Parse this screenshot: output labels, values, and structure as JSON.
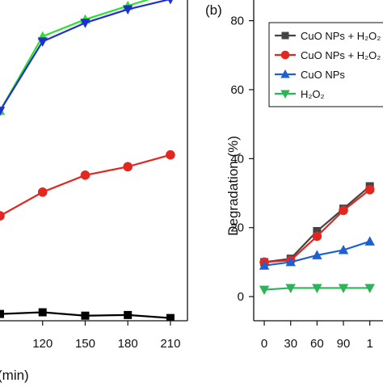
{
  "chart_data": [
    {
      "type": "line",
      "panel_label": "",
      "title": "",
      "xlabel": "(min)",
      "ylabel": "",
      "x_tick_labels": [
        "120",
        "150",
        "180",
        "210"
      ],
      "x": [
        90,
        120,
        150,
        180,
        210
      ],
      "xlim": [
        90,
        222
      ],
      "ylim": [
        0,
        100
      ],
      "grid": false,
      "legend": "none",
      "series": [
        {
          "color": "#2fe02f",
          "marker": "triangle-up",
          "x": [
            90,
            120,
            150,
            180,
            210
          ],
          "values": [
            62,
            84,
            89,
            93,
            97
          ]
        },
        {
          "color": "#1f2fd0",
          "marker": "triangle-down",
          "x": [
            90,
            120,
            150,
            180,
            210
          ],
          "values": [
            62,
            82.5,
            88,
            92,
            95
          ]
        },
        {
          "color": "#e3261f",
          "marker": "circle",
          "x": [
            90,
            120,
            150,
            180,
            210
          ],
          "values": [
            31,
            38,
            43,
            45.5,
            49
          ]
        },
        {
          "color": "#000000",
          "marker": "square",
          "x": [
            90,
            120,
            150,
            180,
            210
          ],
          "values": [
            2,
            2.5,
            1.5,
            1.7,
            0.8
          ]
        }
      ]
    },
    {
      "type": "line",
      "panel_label": "(b)",
      "title": "",
      "xlabel": "",
      "ylabel": "Degradation (%)",
      "x_tick_labels": [
        "0",
        "30",
        "60",
        "90",
        "1"
      ],
      "y_tick_labels": [
        "0",
        "20",
        "40",
        "60",
        "80"
      ],
      "x": [
        0,
        30,
        60,
        90,
        120
      ],
      "xlim": [
        -12,
        135
      ],
      "ylim": [
        -7,
        86
      ],
      "grid": false,
      "legend": "top-right",
      "series": [
        {
          "name": "CuO NPs + H₂O₂",
          "color": "#444444",
          "marker": "square",
          "x": [
            0,
            30,
            60,
            90,
            120
          ],
          "values": [
            10,
            11,
            19,
            25.5,
            32
          ]
        },
        {
          "name": "CuO NPs + H₂O₂",
          "color": "#e3261f",
          "marker": "circle",
          "x": [
            0,
            30,
            60,
            90,
            120
          ],
          "values": [
            10,
            10.5,
            17.5,
            25,
            31
          ]
        },
        {
          "name": "CuO NPs",
          "color": "#1f5fd0",
          "marker": "triangle-up",
          "x": [
            0,
            30,
            60,
            90,
            120
          ],
          "values": [
            9,
            10,
            12,
            13.5,
            16
          ]
        },
        {
          "name": "H₂O₂",
          "color": "#2fb35a",
          "marker": "triangle-down",
          "x": [
            0,
            30,
            60,
            90,
            120
          ],
          "values": [
            2,
            2.5,
            2.5,
            2.5,
            2.5
          ]
        }
      ]
    }
  ]
}
